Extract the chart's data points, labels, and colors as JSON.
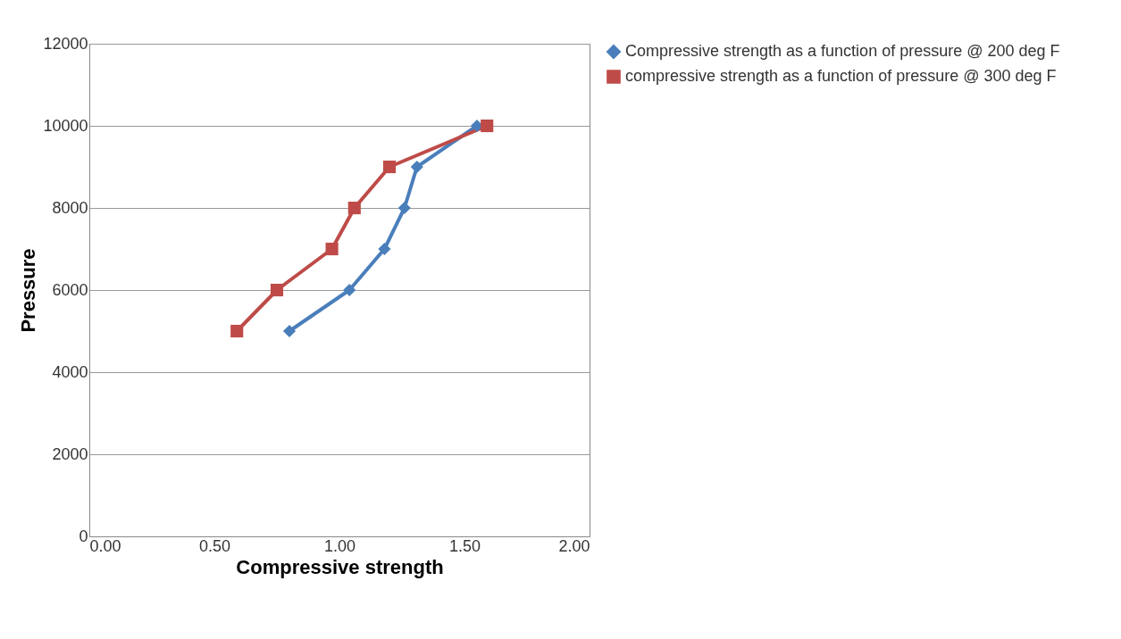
{
  "chart_data": {
    "type": "line",
    "xlabel": "Compressive strength",
    "ylabel": "Pressure",
    "xlim": [
      0,
      2
    ],
    "xticks": [
      {
        "value": 0,
        "label": "0.00"
      },
      {
        "value": 0.5,
        "label": "0.50"
      },
      {
        "value": 1,
        "label": "1.00"
      },
      {
        "value": 1.5,
        "label": "1.50"
      },
      {
        "value": 2,
        "label": "2.00"
      }
    ],
    "ylim": [
      0,
      12000
    ],
    "yticks": [
      0,
      2000,
      4000,
      6000,
      8000,
      10000,
      12000
    ],
    "grid": "y",
    "legend": "right",
    "series": [
      {
        "name": "Compressive strength as a function of pressure @ 200 deg F",
        "color": "#4a7ebb",
        "marker": "diamond",
        "x": [
          0.8,
          1.04,
          1.18,
          1.26,
          1.31,
          1.55
        ],
        "values": [
          5000,
          6000,
          7000,
          8000,
          9000,
          10000
        ]
      },
      {
        "name": "compressive strength as a function of pressure @ 300 deg F",
        "color": "#be4b48",
        "marker": "square",
        "x": [
          0.59,
          0.75,
          0.97,
          1.06,
          1.2,
          1.59
        ],
        "values": [
          5000,
          6000,
          7000,
          8000,
          9000,
          10000
        ]
      }
    ]
  }
}
